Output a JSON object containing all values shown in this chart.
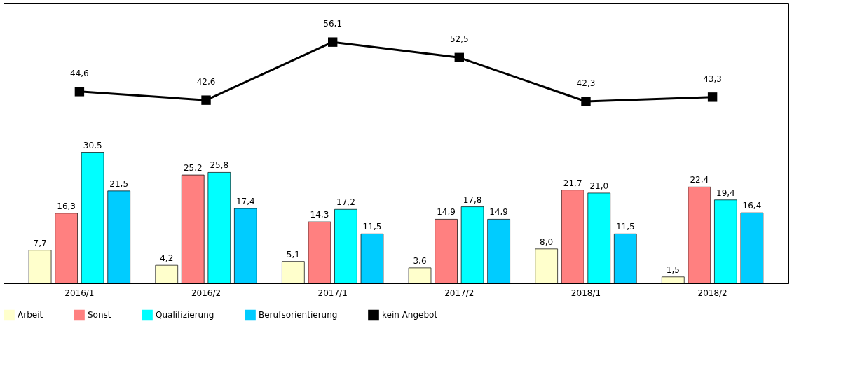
{
  "chart_data": {
    "type": "bar",
    "categories": [
      "2016/1",
      "2016/2",
      "2017/1",
      "2017/2",
      "2018/1",
      "2018/2"
    ],
    "series": [
      {
        "name": "Arbeit",
        "color": "#ffffcc",
        "values": [
          7.7,
          4.2,
          5.1,
          3.6,
          8.0,
          1.5
        ],
        "value_labels": [
          "7,7",
          "4,2",
          "5,1",
          "3,6",
          "8,0",
          "1,5"
        ]
      },
      {
        "name": "Sonst",
        "color": "#ff8080",
        "values": [
          16.3,
          25.2,
          14.3,
          14.9,
          21.7,
          22.4
        ],
        "value_labels": [
          "16,3",
          "25,2",
          "14,3",
          "14,9",
          "21,7",
          "22,4"
        ]
      },
      {
        "name": "Qualifizierung",
        "color": "#00ffff",
        "values": [
          30.5,
          25.8,
          17.2,
          17.8,
          21.0,
          19.4
        ],
        "value_labels": [
          "30,5",
          "25,8",
          "17,2",
          "17,8",
          "21,0",
          "19,4"
        ]
      },
      {
        "name": "Berufsorientierung",
        "color": "#00ccff",
        "values": [
          21.5,
          17.4,
          11.5,
          14.9,
          11.5,
          16.4
        ],
        "value_labels": [
          "21,5",
          "17,4",
          "11,5",
          "14,9",
          "11,5",
          "16,4"
        ]
      },
      {
        "name": "kein Angebot",
        "type": "line",
        "color": "#000000",
        "values": [
          44.6,
          42.6,
          56.1,
          52.5,
          42.3,
          43.3
        ],
        "value_labels": [
          "44,6",
          "42,6",
          "56,1",
          "52,5",
          "42,3",
          "43,3"
        ]
      }
    ],
    "legend": "bottom",
    "marker": "square",
    "line_style": "solid",
    "grid": false
  }
}
